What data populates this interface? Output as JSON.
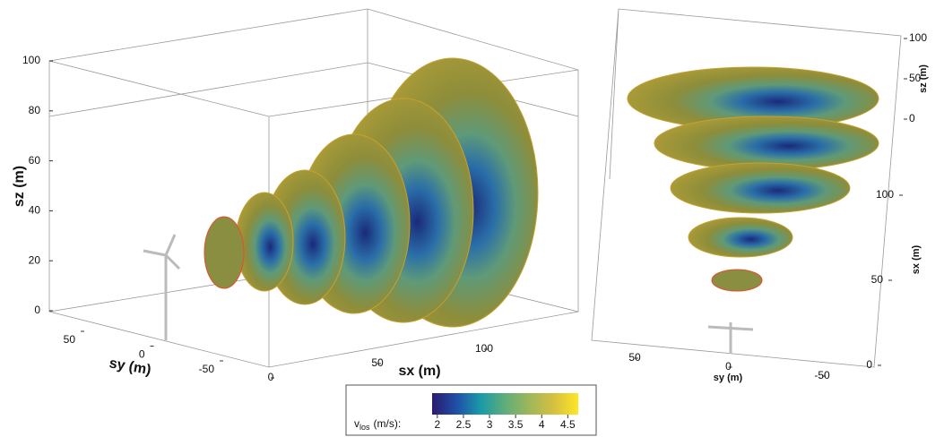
{
  "left_view": {
    "z_label": "sz (m)",
    "z_ticks": [
      0,
      20,
      40,
      60,
      80,
      100
    ],
    "y_label": "sy (m)",
    "y_ticks": [
      50,
      0,
      -50
    ],
    "x_label": "sx (m)",
    "x_ticks": [
      0,
      50,
      100
    ]
  },
  "right_view": {
    "z_label": "sz (m)",
    "z_ticks": [
      100,
      50,
      0
    ],
    "x_label": "sx (m)",
    "x_ticks": [
      100,
      50,
      0
    ],
    "y_label": "sy (m)",
    "y_ticks": [
      50,
      0,
      -50
    ]
  },
  "colorbar": {
    "label_main": "v",
    "label_sub": "los",
    "label_unit": "(m/s):",
    "range": [
      1.9,
      4.7
    ],
    "ticks": [
      2,
      2.5,
      3,
      3.5,
      4,
      4.5
    ],
    "colors": [
      "#2b1a6e",
      "#1f4fa8",
      "#1a9aa8",
      "#5fae7a",
      "#9fb75a",
      "#d6c040",
      "#fde725"
    ]
  }
}
